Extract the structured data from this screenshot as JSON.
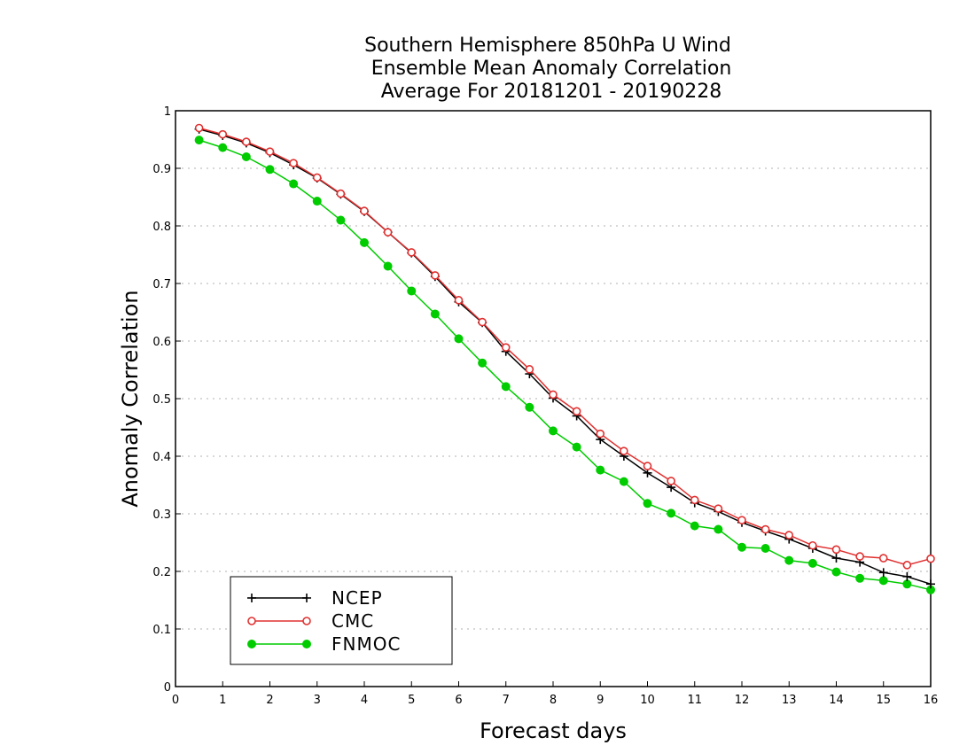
{
  "chart_data": {
    "type": "line",
    "title_lines": [
      "Southern Hemisphere 850hPa U Wind",
      "Ensemble Mean Anomaly Correlation",
      "Average For 20181201 - 20190228"
    ],
    "xlabel": "Forecast days",
    "ylabel": "Anomaly Correlation",
    "xlim": [
      0,
      16
    ],
    "ylim": [
      0,
      1
    ],
    "x_ticks": [
      "0",
      "1",
      "2",
      "3",
      "4",
      "5",
      "6",
      "7",
      "8",
      "9",
      "10",
      "11",
      "12",
      "13",
      "14",
      "15",
      "16"
    ],
    "y_ticks": [
      "0",
      "0.1",
      "0.2",
      "0.3",
      "0.4",
      "0.5",
      "0.6",
      "0.7",
      "0.8",
      "0.9",
      "1"
    ],
    "grid": "horizontal dotted",
    "legend_position": "bottom-left",
    "x": [
      0.5,
      1,
      1.5,
      2,
      2.5,
      3,
      3.5,
      4,
      4.5,
      5,
      5.5,
      6,
      6.5,
      7,
      7.5,
      8,
      8.5,
      9,
      9.5,
      10,
      10.5,
      11,
      11.5,
      12,
      12.5,
      13,
      13.5,
      14,
      14.5,
      15,
      15.5,
      16
    ],
    "series": [
      {
        "name": "NCEP",
        "color": "#000000",
        "marker": "plus",
        "values": [
          0.968,
          0.957,
          0.944,
          0.927,
          0.906,
          0.883,
          0.855,
          0.825,
          0.789,
          0.753,
          0.712,
          0.668,
          0.632,
          0.582,
          0.543,
          0.501,
          0.47,
          0.429,
          0.4,
          0.371,
          0.346,
          0.319,
          0.304,
          0.285,
          0.27,
          0.256,
          0.24,
          0.223,
          0.216,
          0.198,
          0.191,
          0.178
        ]
      },
      {
        "name": "CMC",
        "color": "#e03030",
        "marker": "open-circle",
        "values": [
          0.97,
          0.959,
          0.946,
          0.929,
          0.909,
          0.884,
          0.856,
          0.826,
          0.789,
          0.754,
          0.714,
          0.671,
          0.633,
          0.589,
          0.551,
          0.507,
          0.478,
          0.439,
          0.409,
          0.383,
          0.357,
          0.324,
          0.309,
          0.289,
          0.273,
          0.263,
          0.245,
          0.238,
          0.226,
          0.223,
          0.211,
          0.222
        ]
      },
      {
        "name": "FNMOC",
        "color": "#00cc00",
        "marker": "filled-circle",
        "values": [
          0.949,
          0.936,
          0.92,
          0.898,
          0.873,
          0.843,
          0.81,
          0.771,
          0.73,
          0.687,
          0.647,
          0.604,
          0.562,
          0.521,
          0.485,
          0.444,
          0.416,
          0.376,
          0.356,
          0.318,
          0.301,
          0.279,
          0.273,
          0.242,
          0.24,
          0.219,
          0.214,
          0.199,
          0.188,
          0.184,
          0.178,
          0.168
        ]
      }
    ]
  }
}
